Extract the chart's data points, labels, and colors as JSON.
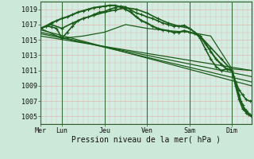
{
  "bg_color": "#cce8d8",
  "plot_bg": "#d4ede2",
  "grid_color": "#e8a0a0",
  "line_color": "#1a5c1a",
  "xlabel": "Pression niveau de la mer( hPa )",
  "ylim": [
    1004.0,
    1020.0
  ],
  "yticks": [
    1005,
    1007,
    1009,
    1011,
    1013,
    1015,
    1017,
    1019
  ],
  "day_labels": [
    "Mer",
    "Lun",
    "Jeu",
    "Ven",
    "Sam",
    "Dim"
  ],
  "day_positions": [
    0,
    24,
    72,
    120,
    168,
    216
  ],
  "total_hours": 238,
  "lines": [
    {
      "x": [
        0,
        6,
        12,
        18,
        24,
        30,
        36,
        42,
        48,
        54,
        60,
        66,
        72,
        78,
        84,
        90,
        96,
        102,
        108,
        114,
        120,
        126,
        132,
        138,
        144,
        150,
        156,
        162,
        168,
        174,
        180,
        186,
        192,
        198,
        204,
        210,
        216,
        220,
        224,
        228,
        232,
        236,
        238
      ],
      "y": [
        1016.5,
        1016.8,
        1016.7,
        1016.5,
        1015.2,
        1016.0,
        1016.8,
        1017.5,
        1017.8,
        1018.0,
        1018.3,
        1018.6,
        1018.7,
        1019.0,
        1019.2,
        1019.4,
        1019.3,
        1018.9,
        1018.5,
        1018.3,
        1018.0,
        1017.8,
        1017.5,
        1017.2,
        1017.0,
        1016.8,
        1016.8,
        1016.9,
        1016.5,
        1016.0,
        1015.2,
        1013.8,
        1012.5,
        1011.5,
        1011.0,
        1011.2,
        1011.0,
        1009.5,
        1008.5,
        1007.8,
        1007.2,
        1007.0,
        1007.0
      ],
      "marker": "+",
      "ms": 2.5,
      "lw": 1.2
    },
    {
      "x": [
        0,
        238
      ],
      "y": [
        1016.3,
        1009.0
      ],
      "marker": null,
      "ms": 0,
      "lw": 0.9
    },
    {
      "x": [
        0,
        238
      ],
      "y": [
        1016.0,
        1009.5
      ],
      "marker": null,
      "ms": 0,
      "lw": 0.9
    },
    {
      "x": [
        0,
        238
      ],
      "y": [
        1015.8,
        1010.2
      ],
      "marker": null,
      "ms": 0,
      "lw": 0.9
    },
    {
      "x": [
        0,
        238
      ],
      "y": [
        1015.5,
        1011.0
      ],
      "marker": null,
      "ms": 0,
      "lw": 0.9
    },
    {
      "x": [
        0,
        24,
        48,
        72,
        96,
        120,
        144,
        168,
        192,
        216,
        238
      ],
      "y": [
        1016.5,
        1015.2,
        1015.5,
        1016.0,
        1017.0,
        1016.5,
        1016.2,
        1016.0,
        1015.5,
        1011.2,
        1011.0
      ],
      "marker": null,
      "ms": 0,
      "lw": 0.9
    },
    {
      "x": [
        0,
        12,
        24,
        36,
        48,
        60,
        72,
        84,
        96,
        108,
        120,
        132,
        144,
        156,
        168,
        180,
        192,
        204,
        216,
        220,
        224,
        228,
        232,
        235,
        238
      ],
      "y": [
        1016.5,
        1017.0,
        1016.5,
        1017.2,
        1017.8,
        1018.2,
        1018.6,
        1018.9,
        1019.2,
        1019.0,
        1018.5,
        1017.8,
        1017.2,
        1016.8,
        1016.5,
        1015.5,
        1014.0,
        1012.5,
        1011.0,
        1009.0,
        1007.2,
        1006.0,
        1005.5,
        1005.2,
        1005.0
      ],
      "marker": "+",
      "ms": 2.5,
      "lw": 1.2
    },
    {
      "x": [
        0,
        6,
        12,
        18,
        24,
        30,
        36,
        42,
        48,
        54,
        60,
        66,
        72,
        78,
        84,
        90,
        96,
        102,
        108,
        114,
        120,
        126,
        132,
        138,
        144,
        150,
        156,
        162,
        168,
        174,
        180,
        186,
        192,
        198,
        204,
        210,
        216,
        218,
        220,
        222,
        224,
        226,
        228,
        230,
        232,
        234,
        236,
        238
      ],
      "y": [
        1016.5,
        1016.8,
        1017.2,
        1017.5,
        1017.8,
        1018.0,
        1018.3,
        1018.6,
        1018.8,
        1019.0,
        1019.2,
        1019.3,
        1019.4,
        1019.5,
        1019.5,
        1019.3,
        1019.0,
        1018.6,
        1018.0,
        1017.5,
        1017.2,
        1016.8,
        1016.5,
        1016.3,
        1016.2,
        1016.0,
        1016.0,
        1016.2,
        1016.0,
        1015.8,
        1015.5,
        1014.5,
        1013.5,
        1012.5,
        1011.8,
        1011.2,
        1011.0,
        1010.2,
        1009.3,
        1008.5,
        1007.8,
        1007.0,
        1006.5,
        1006.0,
        1005.8,
        1005.5,
        1005.2,
        1005.0
      ],
      "marker": "+",
      "ms": 2.5,
      "lw": 1.5
    }
  ]
}
